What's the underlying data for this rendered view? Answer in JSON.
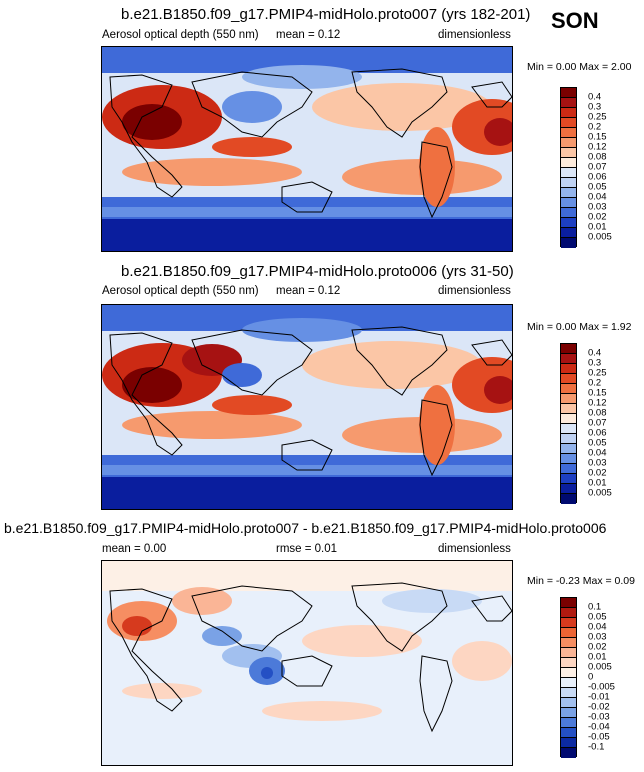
{
  "season": "SON",
  "panels": [
    {
      "title": "b.e21.B1850.f09_g17.PMIP4-midHolo.proto007 (yrs 182-201)",
      "left_label": "Aerosol optical depth (550 nm)",
      "mean_label": "mean =  0.12",
      "units": "dimensionless",
      "minmax": "Min =  0.00 Max =  2.00",
      "colorbar": {
        "labels": [
          "0.4",
          "0.3",
          "0.25",
          "0.2",
          "0.15",
          "0.12",
          "0.08",
          "0.07",
          "0.06",
          "0.05",
          "0.04",
          "0.03",
          "0.02",
          "0.01",
          "0.005"
        ],
        "colors": [
          "#7a0000",
          "#a61212",
          "#cc2a14",
          "#e24a24",
          "#ef7040",
          "#f69a6e",
          "#fbc6a6",
          "#fdebdc",
          "#dbe6f7",
          "#bfd2f3",
          "#93b4ec",
          "#6690e4",
          "#3f6ad8",
          "#1d3fc2",
          "#0a1e9e",
          "#000a70"
        ]
      }
    },
    {
      "title": "b.e21.B1850.f09_g17.PMIP4-midHolo.proto006 (yrs 31-50)",
      "left_label": "Aerosol optical depth (550 nm)",
      "mean_label": "mean =  0.12",
      "units": "dimensionless",
      "minmax": "Min =  0.00 Max =  1.92",
      "colorbar": {
        "labels": [
          "0.4",
          "0.3",
          "0.25",
          "0.2",
          "0.15",
          "0.12",
          "0.08",
          "0.07",
          "0.06",
          "0.05",
          "0.04",
          "0.03",
          "0.02",
          "0.01",
          "0.005"
        ],
        "colors": [
          "#7a0000",
          "#a61212",
          "#cc2a14",
          "#e24a24",
          "#ef7040",
          "#f69a6e",
          "#fbc6a6",
          "#fdebdc",
          "#dbe6f7",
          "#bfd2f3",
          "#93b4ec",
          "#6690e4",
          "#3f6ad8",
          "#1d3fc2",
          "#0a1e9e",
          "#000a70"
        ]
      }
    },
    {
      "title": "b.e21.B1850.f09_g17.PMIP4-midHolo.proto007 - b.e21.B1850.f09_g17.PMIP4-midHolo.proto006",
      "left_label": "mean =  0.00",
      "mean_label": "rmse =  0.01",
      "units": "dimensionless",
      "minmax": "Min = -0.23 Max =  0.09",
      "colorbar": {
        "labels": [
          "0.1",
          "0.05",
          "0.04",
          "0.03",
          "0.02",
          "0.01",
          "0.005",
          "0",
          "-0.005",
          "-0.01",
          "-0.02",
          "-0.03",
          "-0.04",
          "-0.05",
          "-0.1"
        ],
        "colors": [
          "#7a0000",
          "#b01a10",
          "#d63a1e",
          "#ec6434",
          "#f68e62",
          "#fab596",
          "#fdd6c2",
          "#fdf0e6",
          "#e8f0fb",
          "#c8daf5",
          "#a2c0ef",
          "#7aa2e6",
          "#4c7ad9",
          "#2450c4",
          "#0c2aa2",
          "#000a70"
        ]
      }
    }
  ],
  "colors": {
    "ocean_low": "#1d3fc2",
    "ocean_mid": "#dbe6f7",
    "ocean_high": "#ef7040",
    "dust": "#a61212"
  }
}
